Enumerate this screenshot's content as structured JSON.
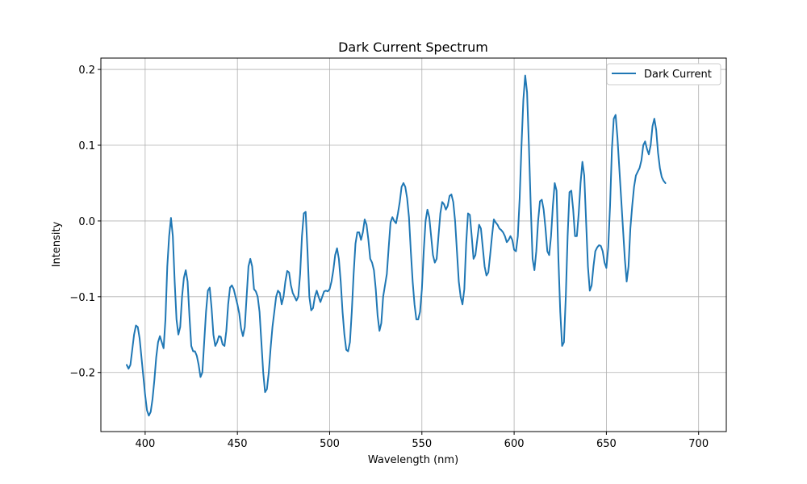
{
  "chart_data": {
    "type": "line",
    "title": "Dark Current Spectrum",
    "xlabel": "Wavelength (nm)",
    "ylabel": "Intensity",
    "xlim": [
      376,
      715
    ],
    "ylim": [
      -0.278,
      0.215
    ],
    "x_ticks": [
      400,
      450,
      500,
      550,
      600,
      650,
      700
    ],
    "x_tick_labels": [
      "400",
      "450",
      "500",
      "550",
      "600",
      "650",
      "700"
    ],
    "y_ticks": [
      -0.2,
      -0.1,
      0.0,
      0.1,
      0.2
    ],
    "y_tick_labels": [
      "−0.2",
      "−0.1",
      "0.0",
      "0.1",
      "0.2"
    ],
    "grid": true,
    "legend": {
      "position": "top-right",
      "entries": [
        "Dark Current"
      ]
    },
    "series": [
      {
        "name": "Dark Current",
        "color": "#1f77b4",
        "points": [
          [
            390,
            -0.19
          ],
          [
            391,
            -0.195
          ],
          [
            392,
            -0.19
          ],
          [
            393,
            -0.17
          ],
          [
            394,
            -0.15
          ],
          [
            395,
            -0.138
          ],
          [
            396,
            -0.14
          ],
          [
            397,
            -0.155
          ],
          [
            398,
            -0.18
          ],
          [
            399,
            -0.205
          ],
          [
            400,
            -0.23
          ],
          [
            401,
            -0.25
          ],
          [
            402,
            -0.257
          ],
          [
            403,
            -0.252
          ],
          [
            404,
            -0.235
          ],
          [
            405,
            -0.21
          ],
          [
            406,
            -0.18
          ],
          [
            407,
            -0.16
          ],
          [
            408,
            -0.152
          ],
          [
            409,
            -0.16
          ],
          [
            410,
            -0.168
          ],
          [
            411,
            -0.13
          ],
          [
            412,
            -0.06
          ],
          [
            413,
            -0.02
          ],
          [
            414,
            0.004
          ],
          [
            415,
            -0.02
          ],
          [
            416,
            -0.08
          ],
          [
            417,
            -0.13
          ],
          [
            418,
            -0.15
          ],
          [
            419,
            -0.14
          ],
          [
            420,
            -0.1
          ],
          [
            421,
            -0.075
          ],
          [
            422,
            -0.065
          ],
          [
            423,
            -0.08
          ],
          [
            424,
            -0.125
          ],
          [
            425,
            -0.165
          ],
          [
            426,
            -0.172
          ],
          [
            427,
            -0.172
          ],
          [
            428,
            -0.178
          ],
          [
            429,
            -0.19
          ],
          [
            430,
            -0.206
          ],
          [
            431,
            -0.2
          ],
          [
            432,
            -0.16
          ],
          [
            433,
            -0.12
          ],
          [
            434,
            -0.092
          ],
          [
            435,
            -0.088
          ],
          [
            436,
            -0.115
          ],
          [
            437,
            -0.15
          ],
          [
            438,
            -0.165
          ],
          [
            439,
            -0.16
          ],
          [
            440,
            -0.152
          ],
          [
            441,
            -0.153
          ],
          [
            442,
            -0.163
          ],
          [
            443,
            -0.165
          ],
          [
            444,
            -0.145
          ],
          [
            445,
            -0.11
          ],
          [
            446,
            -0.088
          ],
          [
            447,
            -0.085
          ],
          [
            448,
            -0.09
          ],
          [
            449,
            -0.1
          ],
          [
            450,
            -0.11
          ],
          [
            451,
            -0.122
          ],
          [
            452,
            -0.142
          ],
          [
            453,
            -0.152
          ],
          [
            454,
            -0.14
          ],
          [
            455,
            -0.1
          ],
          [
            456,
            -0.06
          ],
          [
            457,
            -0.05
          ],
          [
            458,
            -0.06
          ],
          [
            459,
            -0.09
          ],
          [
            460,
            -0.093
          ],
          [
            461,
            -0.1
          ],
          [
            462,
            -0.12
          ],
          [
            463,
            -0.16
          ],
          [
            464,
            -0.2
          ],
          [
            465,
            -0.226
          ],
          [
            466,
            -0.222
          ],
          [
            467,
            -0.2
          ],
          [
            468,
            -0.168
          ],
          [
            469,
            -0.14
          ],
          [
            470,
            -0.12
          ],
          [
            471,
            -0.1
          ],
          [
            472,
            -0.092
          ],
          [
            473,
            -0.095
          ],
          [
            474,
            -0.11
          ],
          [
            475,
            -0.1
          ],
          [
            476,
            -0.08
          ],
          [
            477,
            -0.066
          ],
          [
            478,
            -0.068
          ],
          [
            479,
            -0.085
          ],
          [
            480,
            -0.095
          ],
          [
            481,
            -0.1
          ],
          [
            482,
            -0.105
          ],
          [
            483,
            -0.1
          ],
          [
            484,
            -0.07
          ],
          [
            485,
            -0.02
          ],
          [
            486,
            0.01
          ],
          [
            487,
            0.012
          ],
          [
            488,
            -0.04
          ],
          [
            489,
            -0.1
          ],
          [
            490,
            -0.118
          ],
          [
            491,
            -0.115
          ],
          [
            492,
            -0.1
          ],
          [
            493,
            -0.092
          ],
          [
            494,
            -0.1
          ],
          [
            495,
            -0.107
          ],
          [
            496,
            -0.1
          ],
          [
            497,
            -0.093
          ],
          [
            498,
            -0.092
          ],
          [
            499,
            -0.093
          ],
          [
            500,
            -0.09
          ],
          [
            501,
            -0.08
          ],
          [
            502,
            -0.065
          ],
          [
            503,
            -0.045
          ],
          [
            504,
            -0.036
          ],
          [
            505,
            -0.05
          ],
          [
            506,
            -0.08
          ],
          [
            507,
            -0.12
          ],
          [
            508,
            -0.15
          ],
          [
            509,
            -0.17
          ],
          [
            510,
            -0.172
          ],
          [
            511,
            -0.16
          ],
          [
            512,
            -0.12
          ],
          [
            513,
            -0.07
          ],
          [
            514,
            -0.03
          ],
          [
            515,
            -0.015
          ],
          [
            516,
            -0.015
          ],
          [
            517,
            -0.025
          ],
          [
            518,
            -0.015
          ],
          [
            519,
            0.002
          ],
          [
            520,
            -0.005
          ],
          [
            521,
            -0.025
          ],
          [
            522,
            -0.05
          ],
          [
            523,
            -0.055
          ],
          [
            524,
            -0.065
          ],
          [
            525,
            -0.09
          ],
          [
            526,
            -0.125
          ],
          [
            527,
            -0.145
          ],
          [
            528,
            -0.135
          ],
          [
            529,
            -0.1
          ],
          [
            530,
            -0.085
          ],
          [
            531,
            -0.07
          ],
          [
            532,
            -0.035
          ],
          [
            533,
            -0.002
          ],
          [
            534,
            0.005
          ],
          [
            535,
            0.0
          ],
          [
            536,
            -0.003
          ],
          [
            537,
            0.01
          ],
          [
            538,
            0.025
          ],
          [
            539,
            0.045
          ],
          [
            540,
            0.05
          ],
          [
            541,
            0.045
          ],
          [
            542,
            0.03
          ],
          [
            543,
            0.005
          ],
          [
            544,
            -0.04
          ],
          [
            545,
            -0.08
          ],
          [
            546,
            -0.11
          ],
          [
            547,
            -0.13
          ],
          [
            548,
            -0.13
          ],
          [
            549,
            -0.12
          ],
          [
            550,
            -0.09
          ],
          [
            551,
            -0.04
          ],
          [
            552,
            0.0
          ],
          [
            553,
            0.015
          ],
          [
            554,
            0.005
          ],
          [
            555,
            -0.02
          ],
          [
            556,
            -0.045
          ],
          [
            557,
            -0.055
          ],
          [
            558,
            -0.05
          ],
          [
            559,
            -0.02
          ],
          [
            560,
            0.01
          ],
          [
            561,
            0.025
          ],
          [
            562,
            0.022
          ],
          [
            563,
            0.015
          ],
          [
            564,
            0.02
          ],
          [
            565,
            0.033
          ],
          [
            566,
            0.035
          ],
          [
            567,
            0.025
          ],
          [
            568,
            0.0
          ],
          [
            569,
            -0.04
          ],
          [
            570,
            -0.08
          ],
          [
            571,
            -0.1
          ],
          [
            572,
            -0.11
          ],
          [
            573,
            -0.09
          ],
          [
            574,
            -0.03
          ],
          [
            575,
            0.01
          ],
          [
            576,
            0.008
          ],
          [
            577,
            -0.02
          ],
          [
            578,
            -0.05
          ],
          [
            579,
            -0.045
          ],
          [
            580,
            -0.025
          ],
          [
            581,
            -0.005
          ],
          [
            582,
            -0.01
          ],
          [
            583,
            -0.035
          ],
          [
            584,
            -0.06
          ],
          [
            585,
            -0.072
          ],
          [
            586,
            -0.068
          ],
          [
            587,
            -0.045
          ],
          [
            588,
            -0.02
          ],
          [
            589,
            0.002
          ],
          [
            590,
            -0.002
          ],
          [
            591,
            -0.005
          ],
          [
            592,
            -0.01
          ],
          [
            593,
            -0.012
          ],
          [
            594,
            -0.015
          ],
          [
            595,
            -0.02
          ],
          [
            596,
            -0.028
          ],
          [
            597,
            -0.025
          ],
          [
            598,
            -0.02
          ],
          [
            599,
            -0.025
          ],
          [
            600,
            -0.038
          ],
          [
            601,
            -0.04
          ],
          [
            602,
            -0.02
          ],
          [
            603,
            0.03
          ],
          [
            604,
            0.1
          ],
          [
            605,
            0.16
          ],
          [
            606,
            0.192
          ],
          [
            607,
            0.17
          ],
          [
            608,
            0.1
          ],
          [
            609,
            0.02
          ],
          [
            610,
            -0.05
          ],
          [
            611,
            -0.065
          ],
          [
            612,
            -0.04
          ],
          [
            613,
            0.0
          ],
          [
            614,
            0.026
          ],
          [
            615,
            0.028
          ],
          [
            616,
            0.015
          ],
          [
            617,
            -0.01
          ],
          [
            618,
            -0.04
          ],
          [
            619,
            -0.045
          ],
          [
            620,
            -0.02
          ],
          [
            621,
            0.02
          ],
          [
            622,
            0.05
          ],
          [
            623,
            0.04
          ],
          [
            624,
            -0.05
          ],
          [
            625,
            -0.12
          ],
          [
            626,
            -0.165
          ],
          [
            627,
            -0.16
          ],
          [
            628,
            -0.1
          ],
          [
            629,
            -0.02
          ],
          [
            630,
            0.038
          ],
          [
            631,
            0.04
          ],
          [
            632,
            0.015
          ],
          [
            633,
            -0.02
          ],
          [
            634,
            -0.02
          ],
          [
            635,
            0.01
          ],
          [
            636,
            0.05
          ],
          [
            637,
            0.078
          ],
          [
            638,
            0.06
          ],
          [
            639,
            0.0
          ],
          [
            640,
            -0.06
          ],
          [
            641,
            -0.092
          ],
          [
            642,
            -0.085
          ],
          [
            643,
            -0.06
          ],
          [
            644,
            -0.04
          ],
          [
            645,
            -0.035
          ],
          [
            646,
            -0.032
          ],
          [
            647,
            -0.033
          ],
          [
            648,
            -0.04
          ],
          [
            649,
            -0.055
          ],
          [
            650,
            -0.062
          ],
          [
            651,
            -0.035
          ],
          [
            652,
            0.02
          ],
          [
            653,
            0.095
          ],
          [
            654,
            0.135
          ],
          [
            655,
            0.14
          ],
          [
            656,
            0.11
          ],
          [
            657,
            0.07
          ],
          [
            658,
            0.03
          ],
          [
            659,
            -0.01
          ],
          [
            660,
            -0.05
          ],
          [
            661,
            -0.08
          ],
          [
            662,
            -0.06
          ],
          [
            663,
            -0.01
          ],
          [
            664,
            0.02
          ],
          [
            665,
            0.045
          ],
          [
            666,
            0.06
          ],
          [
            667,
            0.065
          ],
          [
            668,
            0.07
          ],
          [
            669,
            0.08
          ],
          [
            670,
            0.1
          ],
          [
            671,
            0.105
          ],
          [
            672,
            0.095
          ],
          [
            673,
            0.088
          ],
          [
            674,
            0.1
          ],
          [
            675,
            0.125
          ],
          [
            676,
            0.135
          ],
          [
            677,
            0.12
          ],
          [
            678,
            0.09
          ],
          [
            679,
            0.07
          ],
          [
            680,
            0.058
          ],
          [
            681,
            0.053
          ],
          [
            682,
            0.05
          ]
        ]
      }
    ]
  }
}
